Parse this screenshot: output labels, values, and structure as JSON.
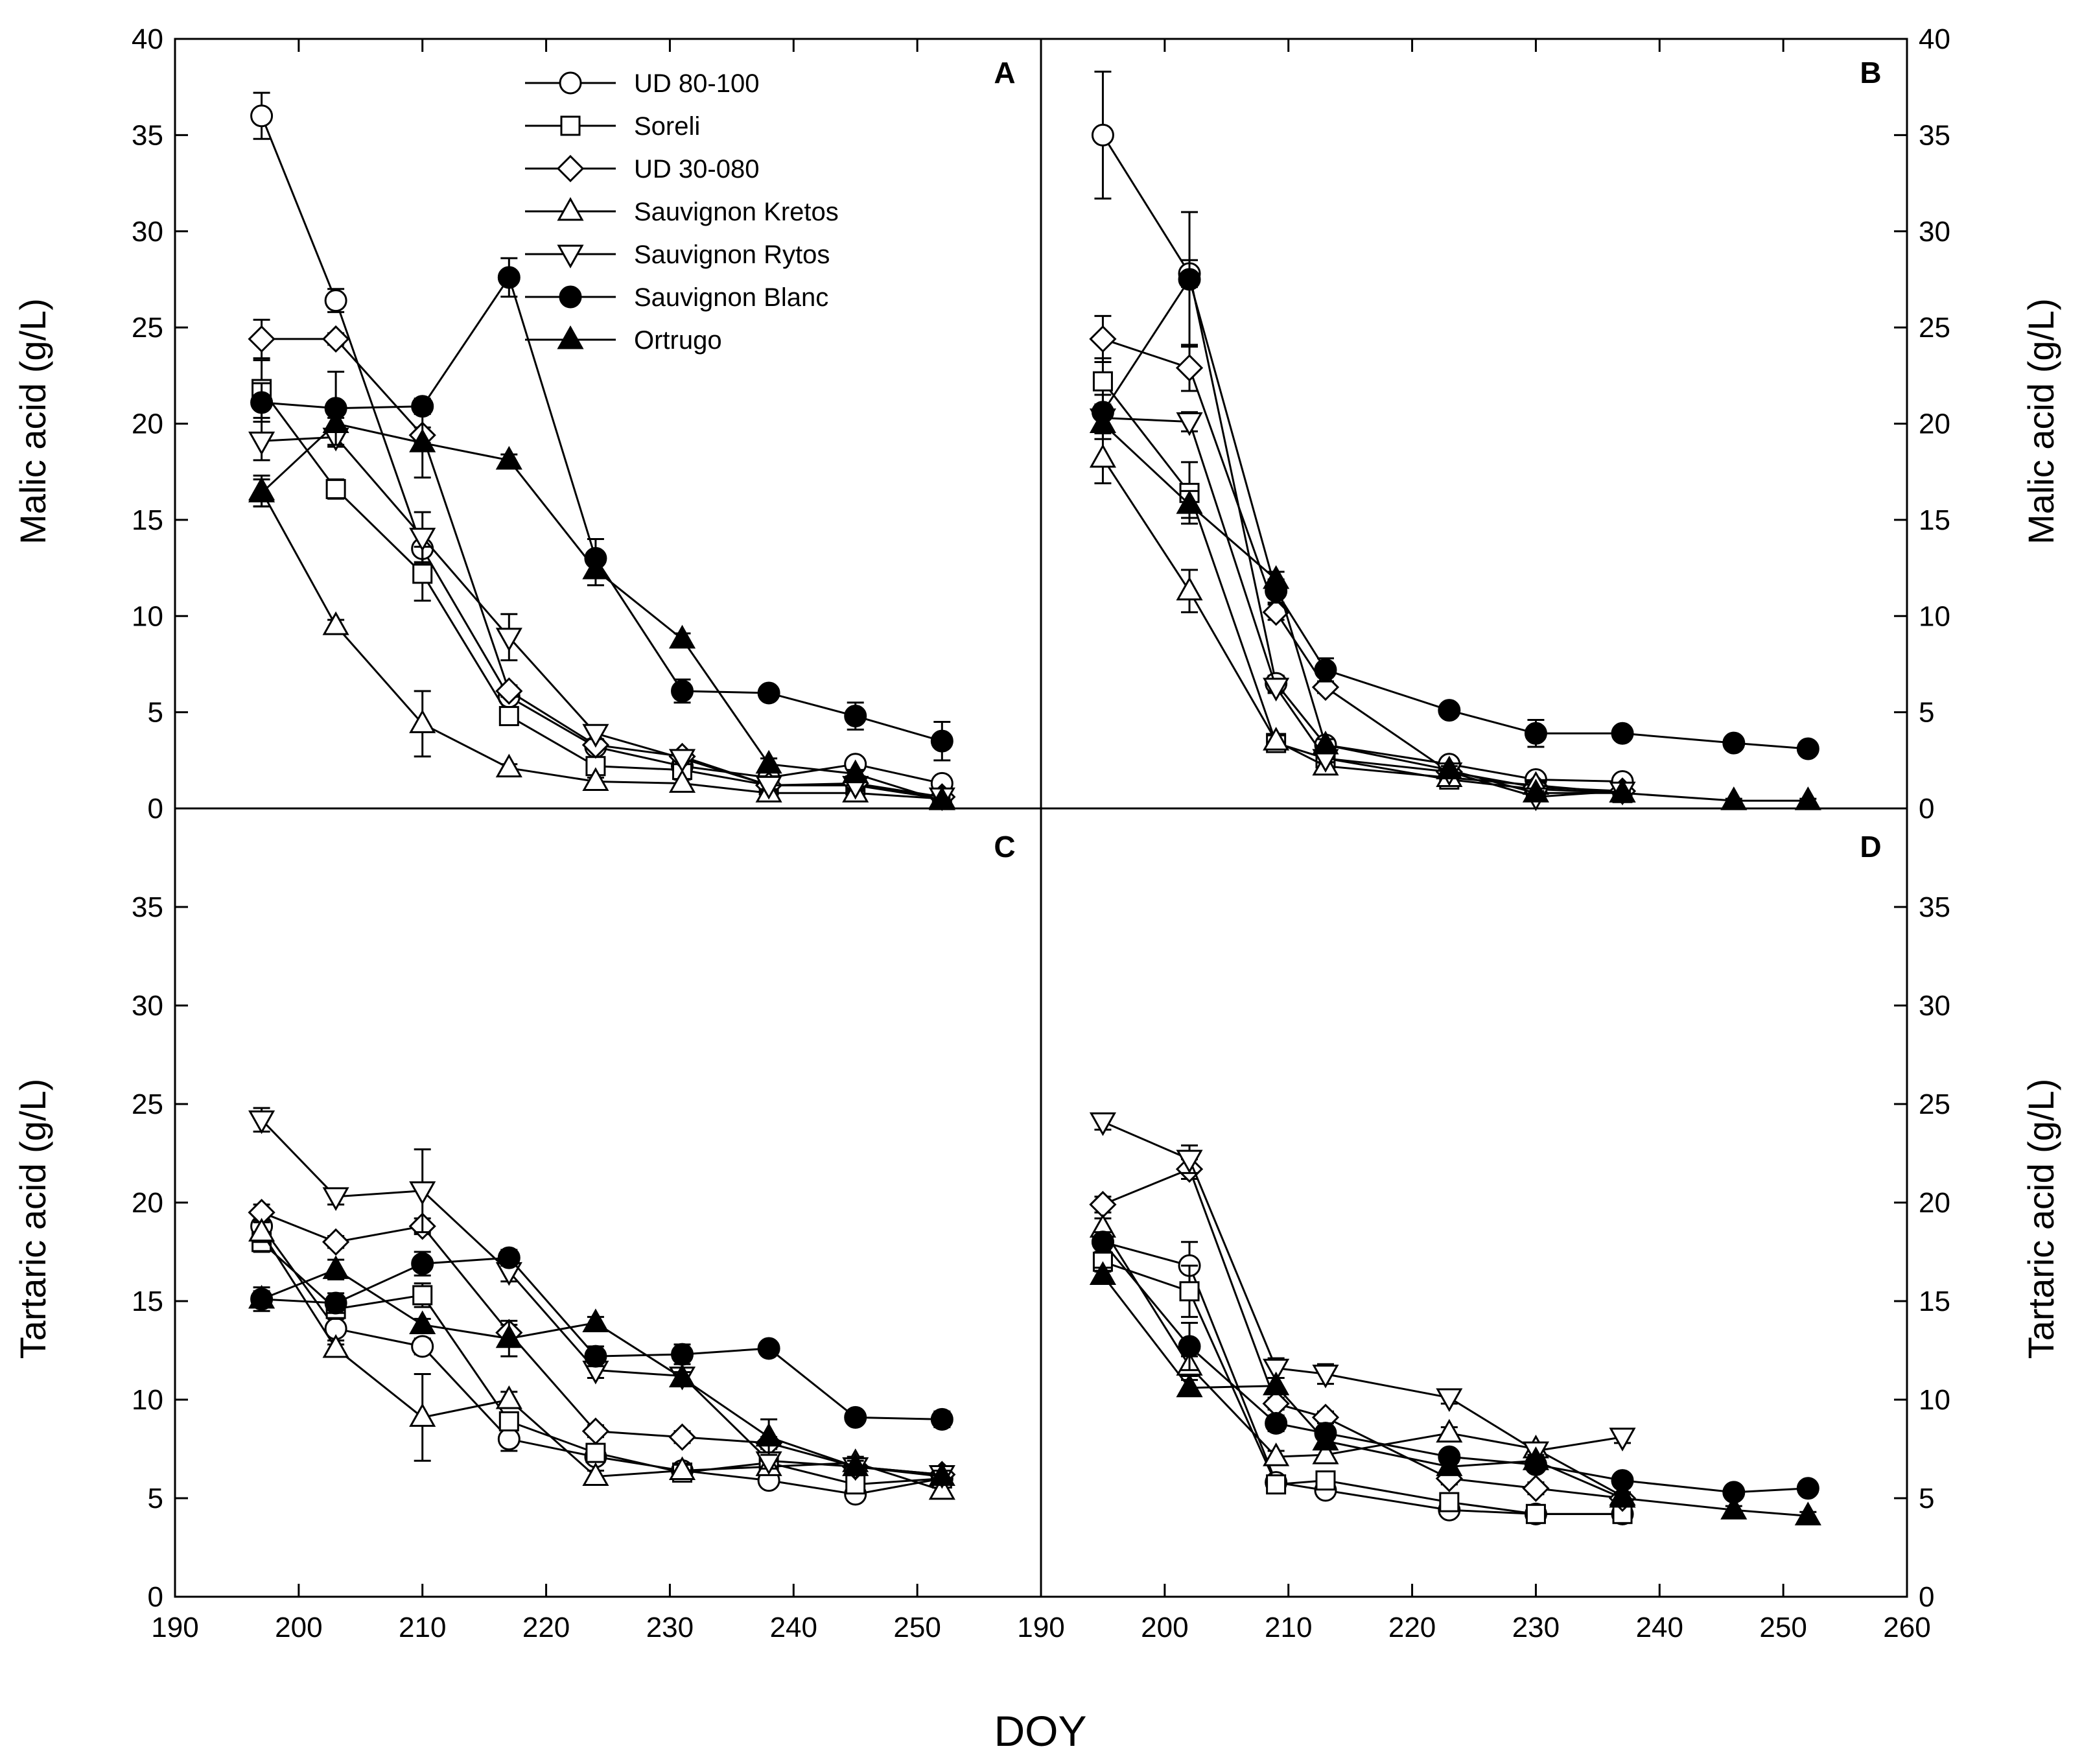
{
  "figure": {
    "x_axis_title": "DOY",
    "y_axis_title_top": "Malic acid (g/L)",
    "y_axis_title_bottom": "Tartaric acid (g/L)"
  },
  "legend": [
    {
      "label": "UD 80-100",
      "marker": "circle-open"
    },
    {
      "label": "Soreli",
      "marker": "square-open"
    },
    {
      "label": "UD 30-080",
      "marker": "diamond-open"
    },
    {
      "label": "Sauvignon Kretos",
      "marker": "triangle-up-open"
    },
    {
      "label": "Sauvignon Rytos",
      "marker": "triangle-down-open"
    },
    {
      "label": "Sauvignon Blanc",
      "marker": "circle-filled"
    },
    {
      "label": "Ortrugo",
      "marker": "triangle-up-filled"
    }
  ],
  "chart_data": [
    {
      "panel": "A",
      "type": "line",
      "ylabel": "Malic acid (g/L)",
      "xlabel": "DOY",
      "xlim": [
        190,
        260
      ],
      "ylim": [
        0,
        40
      ],
      "series": [
        {
          "name": "UD 80-100",
          "x": [
            197,
            203,
            210,
            217,
            224,
            231,
            238,
            245,
            252
          ],
          "y": [
            36,
            26.4,
            13.5,
            5.8,
            3.2,
            2.2,
            1.6,
            2.3,
            1.3
          ],
          "err": [
            1.2,
            0.6,
            0.8,
            0.3,
            0.2,
            0.2,
            0.2,
            0.2,
            0.2
          ]
        },
        {
          "name": "Soreli",
          "x": [
            197,
            203,
            210,
            217,
            224,
            231,
            238,
            245,
            252
          ],
          "y": [
            21.8,
            16.6,
            12.2,
            4.8,
            2.2,
            2.0,
            1.2,
            1.2,
            0.5
          ],
          "err": [
            1.5,
            0.5,
            1.4,
            0.4,
            0.2,
            0.2,
            0.2,
            0.2,
            0.1
          ]
        },
        {
          "name": "UD 30-080",
          "x": [
            197,
            203,
            210,
            217,
            224,
            231,
            238,
            245,
            252
          ],
          "y": [
            24.4,
            24.4,
            19.4,
            6.1,
            3.3,
            2.7,
            1.2,
            1.3,
            0.6
          ],
          "err": [
            1.0,
            0.3,
            0.4,
            0.3,
            0.2,
            0.2,
            0.2,
            0.2,
            0.1
          ]
        },
        {
          "name": "Sauvignon Kretos",
          "x": [
            197,
            203,
            210,
            217,
            224,
            231,
            238,
            245,
            252
          ],
          "y": [
            16.5,
            9.5,
            4.4,
            2.1,
            1.4,
            1.3,
            0.8,
            0.8,
            0.5
          ],
          "err": [
            0.8,
            0.3,
            1.7,
            0.2,
            0.2,
            0.2,
            0.1,
            0.1,
            0.1
          ]
        },
        {
          "name": "Sauvignon Rytos",
          "x": [
            197,
            203,
            210,
            217,
            224,
            231,
            238,
            245,
            252
          ],
          "y": [
            19.1,
            19.3,
            14.1,
            8.9,
            3.9,
            2.6,
            1.2,
            1.2,
            0.6
          ],
          "err": [
            1.0,
            0.5,
            1.3,
            1.2,
            0.3,
            0.3,
            0.2,
            0.2,
            0.1
          ]
        },
        {
          "name": "Sauvignon Blanc",
          "x": [
            197,
            203,
            210,
            217,
            224,
            231,
            238,
            245,
            252
          ],
          "y": [
            21.1,
            20.8,
            20.9,
            27.6,
            13.0,
            6.1,
            6.0,
            4.8,
            3.5
          ],
          "err": [
            1.0,
            1.9,
            0.4,
            1.0,
            1.0,
            0.6,
            0.3,
            0.7,
            1.0
          ]
        },
        {
          "name": "Ortrugo",
          "x": [
            197,
            203,
            210,
            217,
            224,
            231,
            238,
            245,
            252
          ],
          "y": [
            16.4,
            20.0,
            19.0,
            18.1,
            12.4,
            8.8,
            2.3,
            1.8,
            0.4
          ],
          "err": [
            0.7,
            0.3,
            1.8,
            0.3,
            0.8,
            0.3,
            0.3,
            0.2,
            0.1
          ]
        }
      ]
    },
    {
      "panel": "B",
      "type": "line",
      "ylabel": "Malic acid (g/L)",
      "xlabel": "DOY",
      "xlim": [
        190,
        260
      ],
      "ylim": [
        0,
        40
      ],
      "series": [
        {
          "name": "UD 80-100",
          "x": [
            195,
            202,
            209,
            213,
            223,
            230,
            237
          ],
          "y": [
            35.0,
            27.8,
            6.5,
            3.3,
            2.3,
            1.5,
            1.4
          ],
          "err": [
            3.3,
            0.7,
            0.4,
            0.3,
            0.2,
            0.3,
            0.2
          ]
        },
        {
          "name": "Soreli",
          "x": [
            195,
            202,
            209,
            213,
            223,
            230,
            237
          ],
          "y": [
            22.2,
            16.4,
            3.4,
            2.6,
            1.5,
            1.0,
            0.8
          ],
          "err": [
            1.2,
            1.6,
            0.3,
            0.3,
            0.2,
            0.2,
            0.1
          ]
        },
        {
          "name": "UD 30-080",
          "x": [
            195,
            202,
            209,
            213,
            223,
            230,
            237
          ],
          "y": [
            24.4,
            22.9,
            10.2,
            6.3,
            1.9,
            1.1,
            0.9
          ],
          "err": [
            1.2,
            1.2,
            0.4,
            0.3,
            0.2,
            0.2,
            0.1
          ]
        },
        {
          "name": "Sauvignon Kretos",
          "x": [
            195,
            202,
            209,
            213,
            223,
            230,
            237
          ],
          "y": [
            18.2,
            11.3,
            3.5,
            2.2,
            1.6,
            1.2,
            0.8
          ],
          "err": [
            1.3,
            1.1,
            0.3,
            0.2,
            0.2,
            0.2,
            0.1
          ]
        },
        {
          "name": "Sauvignon Rytos",
          "x": [
            195,
            202,
            209,
            213,
            223,
            230,
            237
          ],
          "y": [
            20.3,
            20.1,
            6.3,
            2.6,
            1.9,
            0.6,
            0.9
          ],
          "err": [
            0.5,
            0.5,
            0.3,
            0.2,
            0.2,
            0.1,
            0.1
          ]
        },
        {
          "name": "Sauvignon Blanc",
          "x": [
            195,
            202,
            209,
            213,
            223,
            230,
            237,
            246,
            252
          ],
          "y": [
            20.6,
            27.5,
            11.3,
            7.2,
            5.1,
            3.9,
            3.9,
            3.4,
            3.1
          ],
          "err": [
            0.9,
            3.5,
            0.6,
            0.6,
            0.3,
            0.7,
            0.3,
            0.3,
            0.2
          ]
        },
        {
          "name": "Ortrugo",
          "x": [
            195,
            202,
            209,
            213,
            223,
            230,
            237,
            246,
            252
          ],
          "y": [
            20.0,
            15.8,
            11.9,
            3.3,
            2.0,
            0.8,
            0.8,
            0.4,
            0.4
          ],
          "err": [
            0.8,
            0.7,
            0.4,
            0.3,
            0.2,
            0.1,
            0.1,
            0.1,
            0.1
          ]
        }
      ]
    },
    {
      "panel": "C",
      "type": "line",
      "ylabel": "Tartaric acid (g/L)",
      "xlabel": "DOY",
      "xlim": [
        190,
        260
      ],
      "ylim": [
        0,
        40
      ],
      "series": [
        {
          "name": "UD 80-100",
          "x": [
            197,
            203,
            210,
            217,
            224,
            231,
            238,
            245,
            252
          ],
          "y": [
            18.8,
            13.6,
            12.7,
            8.0,
            7.1,
            6.4,
            5.9,
            5.2,
            6.0
          ],
          "err": [
            0.5,
            0.8,
            0.4,
            0.6,
            0.3,
            0.3,
            0.2,
            0.2,
            0.3
          ]
        },
        {
          "name": "Soreli",
          "x": [
            197,
            203,
            210,
            217,
            224,
            231,
            238,
            245,
            252
          ],
          "y": [
            18.0,
            14.6,
            15.3,
            8.9,
            7.3,
            6.3,
            6.8,
            5.7,
            6.0
          ],
          "err": [
            0.5,
            0.5,
            0.6,
            0.4,
            0.3,
            0.3,
            0.3,
            0.2,
            0.3
          ]
        },
        {
          "name": "UD 30-080",
          "x": [
            197,
            203,
            210,
            217,
            224,
            231,
            238,
            245,
            252
          ],
          "y": [
            19.5,
            18.0,
            18.8,
            13.4,
            8.4,
            8.1,
            7.8,
            6.6,
            6.2
          ],
          "err": [
            0.4,
            0.3,
            0.4,
            0.4,
            0.3,
            0.3,
            0.3,
            0.3,
            0.3
          ]
        },
        {
          "name": "Sauvignon Kretos",
          "x": [
            197,
            203,
            210,
            217,
            224,
            231,
            238,
            245,
            252
          ],
          "y": [
            18.5,
            12.6,
            9.1,
            10.0,
            6.1,
            6.4,
            6.6,
            6.8,
            5.4
          ],
          "err": [
            0.5,
            0.4,
            2.2,
            0.4,
            0.3,
            0.3,
            0.3,
            0.3,
            0.4
          ]
        },
        {
          "name": "Sauvignon Rytos",
          "x": [
            197,
            203,
            210,
            217,
            224,
            231,
            238,
            245,
            252
          ],
          "y": [
            24.2,
            20.3,
            20.6,
            16.5,
            11.5,
            11.2,
            6.9,
            6.6,
            6.2
          ],
          "err": [
            0.6,
            0.4,
            2.1,
            0.5,
            0.4,
            0.4,
            0.4,
            0.3,
            0.3
          ]
        },
        {
          "name": "Sauvignon Blanc",
          "x": [
            197,
            203,
            210,
            217,
            224,
            231,
            238,
            245,
            252
          ],
          "y": [
            15.1,
            14.9,
            16.9,
            17.2,
            12.2,
            12.3,
            12.6,
            9.1,
            9.0
          ],
          "err": [
            0.6,
            0.5,
            0.6,
            0.4,
            0.5,
            0.5,
            0.3,
            0.3,
            0.4
          ]
        },
        {
          "name": "Ortrugo",
          "x": [
            197,
            203,
            210,
            217,
            224,
            231,
            238,
            245,
            252
          ],
          "y": [
            15.1,
            16.6,
            13.8,
            13.1,
            13.9,
            11.1,
            8.1,
            6.6,
            6.1
          ],
          "err": [
            0.4,
            0.5,
            0.3,
            0.9,
            0.3,
            0.3,
            0.9,
            0.3,
            0.3
          ]
        }
      ]
    },
    {
      "panel": "D",
      "type": "line",
      "ylabel": "Tartaric acid (g/L)",
      "xlabel": "DOY",
      "xlim": [
        190,
        260
      ],
      "ylim": [
        0,
        40
      ],
      "series": [
        {
          "name": "UD 80-100",
          "x": [
            195,
            202,
            209,
            213,
            223,
            230,
            237
          ],
          "y": [
            18.0,
            16.8,
            5.8,
            5.4,
            4.4,
            4.2,
            4.2
          ],
          "err": [
            0.5,
            1.2,
            0.3,
            0.3,
            0.3,
            0.2,
            0.2
          ]
        },
        {
          "name": "Soreli",
          "x": [
            195,
            202,
            209,
            213,
            223,
            230,
            237
          ],
          "y": [
            17.0,
            15.5,
            5.7,
            5.9,
            4.8,
            4.2,
            4.2
          ],
          "err": [
            0.5,
            1.3,
            0.3,
            0.3,
            0.3,
            0.2,
            0.2
          ]
        },
        {
          "name": "UD 30-080",
          "x": [
            195,
            202,
            209,
            213,
            223,
            230,
            237
          ],
          "y": [
            19.9,
            21.7,
            9.8,
            9.1,
            6.0,
            5.5,
            5.0
          ],
          "err": [
            0.4,
            0.5,
            0.3,
            0.3,
            0.3,
            0.3,
            0.2
          ]
        },
        {
          "name": "Sauvignon Kretos",
          "x": [
            195,
            202,
            209,
            213,
            223,
            230,
            237
          ],
          "y": [
            18.7,
            11.7,
            7.1,
            7.2,
            8.3,
            7.5,
            5.1
          ],
          "err": [
            0.5,
            0.5,
            0.3,
            0.3,
            0.3,
            0.3,
            0.2
          ]
        },
        {
          "name": "Sauvignon Rytos",
          "x": [
            195,
            202,
            209,
            213,
            223,
            230,
            237
          ],
          "y": [
            24.1,
            22.2,
            11.6,
            11.3,
            10.1,
            7.4,
            8.1
          ],
          "err": [
            0.4,
            0.7,
            0.5,
            0.5,
            0.3,
            0.3,
            0.3
          ]
        },
        {
          "name": "Sauvignon Blanc",
          "x": [
            195,
            202,
            209,
            213,
            223,
            230,
            237,
            246,
            252
          ],
          "y": [
            18.0,
            12.7,
            8.8,
            8.3,
            7.1,
            6.7,
            5.9,
            5.3,
            5.5
          ],
          "err": [
            0.5,
            1.2,
            0.4,
            0.5,
            0.3,
            0.3,
            0.3,
            0.3,
            0.2
          ]
        },
        {
          "name": "Ortrugo",
          "x": [
            195,
            202,
            209,
            213,
            223,
            230,
            237,
            246,
            252
          ],
          "y": [
            16.3,
            10.6,
            10.7,
            7.9,
            6.6,
            6.9,
            5.0,
            4.4,
            4.1
          ],
          "err": [
            0.4,
            0.4,
            0.4,
            0.3,
            0.3,
            0.3,
            0.2,
            0.2,
            0.2
          ]
        }
      ]
    }
  ]
}
